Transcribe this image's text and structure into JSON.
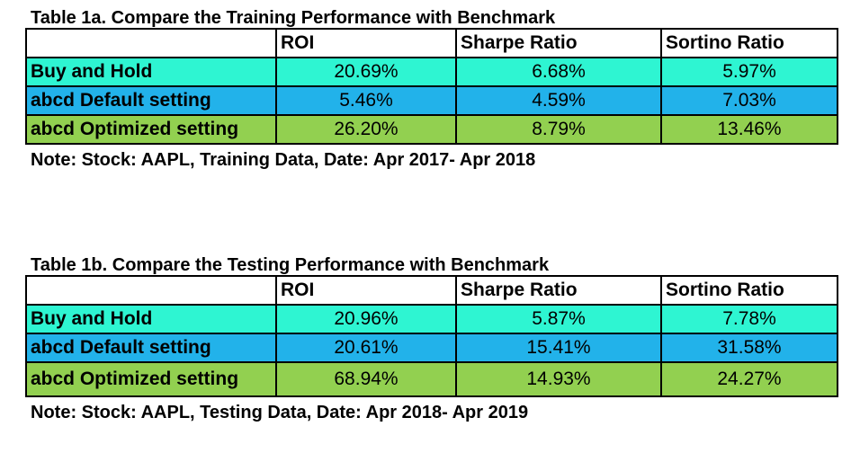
{
  "colors": {
    "row_buy_hold": "#2ef5d2",
    "row_default": "#22b2ea",
    "row_optimized": "#92d050"
  },
  "table_a": {
    "title": "Table 1a. Compare the Training Performance with Benchmark",
    "headers": [
      "",
      "ROI",
      "Sharpe Ratio",
      "Sortino Ratio"
    ],
    "rows": [
      {
        "label": "Buy and Hold",
        "roi": "20.69%",
        "sharpe": "6.68%",
        "sortino": "5.97%"
      },
      {
        "label": "abcd Default setting",
        "roi": "5.46%",
        "sharpe": "4.59%",
        "sortino": "7.03%"
      },
      {
        "label": "abcd Optimized setting",
        "roi": "26.20%",
        "sharpe": "8.79%",
        "sortino": "13.46%"
      }
    ],
    "note": "Note: Stock: AAPL, Training Data, Date: Apr 2017- Apr 2018"
  },
  "table_b": {
    "title": "Table 1b. Compare the Testing Performance with Benchmark",
    "headers": [
      "",
      "ROI",
      "Sharpe Ratio",
      "Sortino Ratio"
    ],
    "rows": [
      {
        "label": "Buy and Hold",
        "roi": "20.96%",
        "sharpe": "5.87%",
        "sortino": "7.78%"
      },
      {
        "label": "abcd Default setting",
        "roi": "20.61%",
        "sharpe": "15.41%",
        "sortino": "31.58%"
      },
      {
        "label": "abcd Optimized setting",
        "roi": "68.94%",
        "sharpe": "14.93%",
        "sortino": "24.27%"
      }
    ],
    "note": "Note: Stock: AAPL, Testing Data, Date: Apr 2018- Apr 2019"
  }
}
